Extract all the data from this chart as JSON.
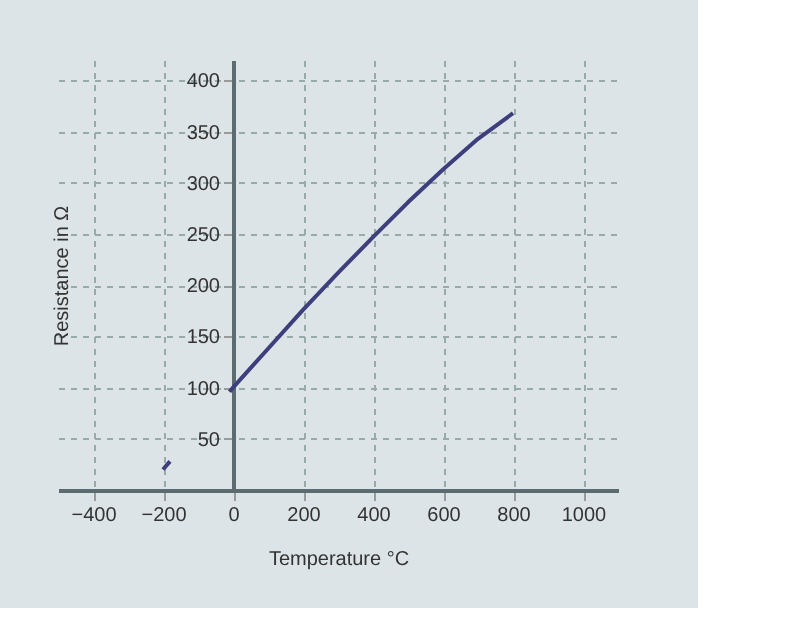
{
  "chart_data": {
    "type": "line",
    "xlabel": "Temperature °C",
    "ylabel": "Resistance in Ω",
    "x": [
      -200,
      -180,
      -100,
      -10,
      0,
      100,
      200,
      300,
      400,
      500,
      600,
      700,
      800
    ],
    "series": [
      {
        "color": "#3d3f7c",
        "values": [
          20,
          28,
          null,
          96,
          100,
          138,
          176,
          212,
          247,
          281,
          313,
          343,
          368
        ]
      }
    ],
    "xlim": [
      -500,
      1100
    ],
    "ylim": [
      0,
      420
    ],
    "xticks": [
      -400,
      -200,
      0,
      200,
      400,
      600,
      800,
      1000
    ],
    "yticks": [
      50,
      100,
      150,
      200,
      250,
      300,
      350,
      400
    ],
    "grid": true,
    "line_style": "solid",
    "marker": "none"
  }
}
